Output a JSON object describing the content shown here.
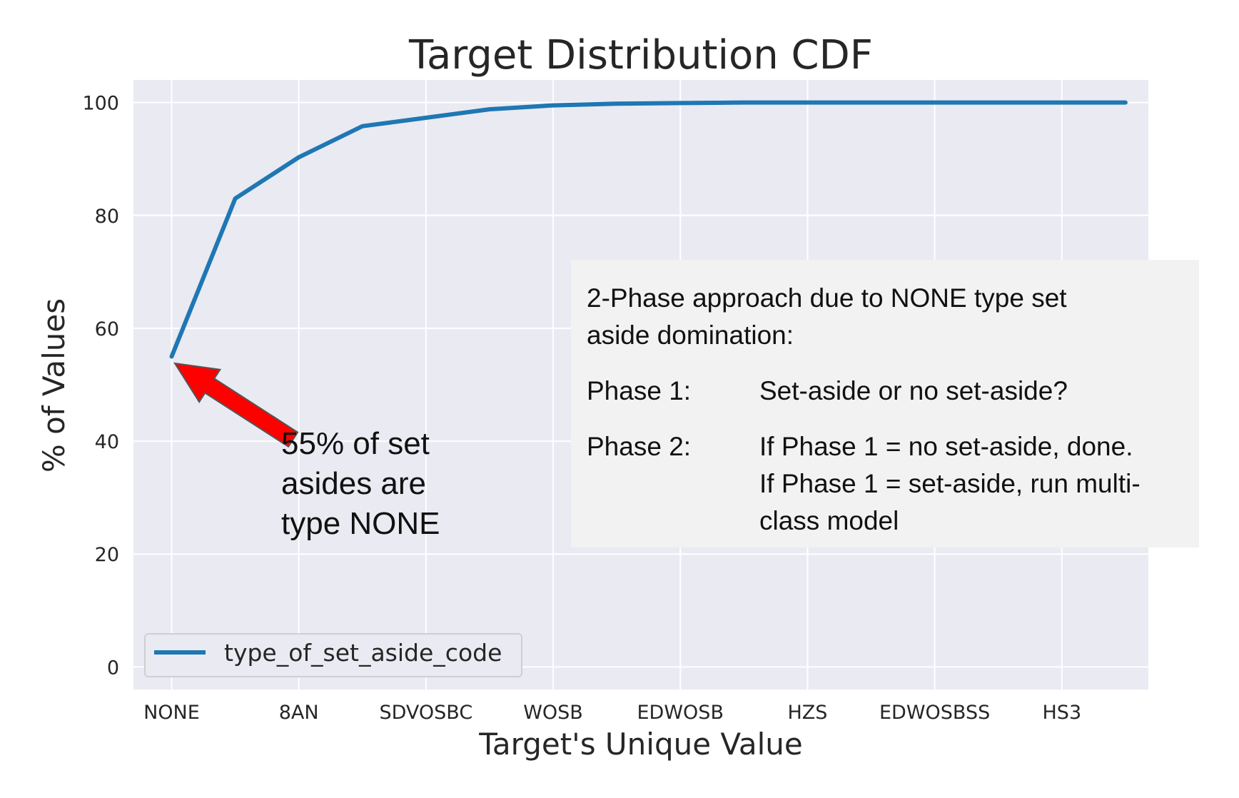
{
  "chart_data": {
    "type": "line",
    "title": "Target Distribution CDF",
    "xlabel": "Target's Unique Value",
    "ylabel": "% of Values",
    "categories": [
      "NONE",
      "8AN",
      "SDVOSBC",
      "WOSB",
      "EDWOSB",
      "HZS",
      "EDWOSBSS",
      "HS3"
    ],
    "ylim": [
      -4,
      104
    ],
    "yticks": [
      0,
      20,
      40,
      60,
      80,
      100
    ],
    "grid": true,
    "legend_position": "lower left",
    "series": [
      {
        "name": "type_of_set_aside_code",
        "color": "#1f77b4",
        "x": [
          0,
          0.5,
          1,
          1.5,
          2,
          2.5,
          3,
          3.5,
          4,
          4.5,
          5,
          5.5,
          6,
          6.5,
          7,
          7.5
        ],
        "values": [
          55,
          83,
          90.3,
          95.8,
          97.3,
          98.8,
          99.5,
          99.8,
          99.9,
          100,
          100,
          100,
          100,
          100,
          100,
          100
        ]
      }
    ]
  },
  "annotations": {
    "callout_lines": [
      "55% of set",
      "asides are",
      "type NONE"
    ],
    "arrow_color": "#ff0000",
    "info_intro": "2-Phase approach due to NONE type set aside domination:",
    "phase1_label": "Phase 1:",
    "phase1_text": "Set-aside or no set-aside?",
    "phase2_label": "Phase 2:",
    "phase2_line1": "If Phase 1 = no set-aside, done.",
    "phase2_line2": "If Phase 1 = set-aside, run multi-class model"
  }
}
